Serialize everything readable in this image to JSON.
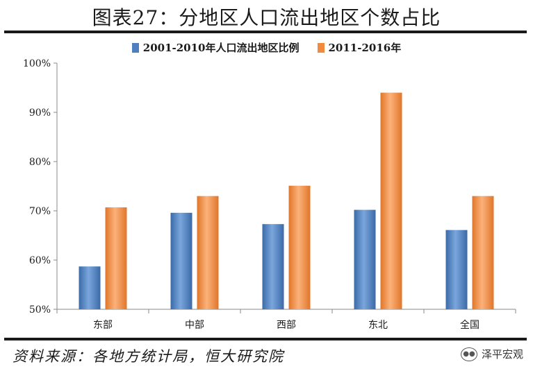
{
  "title": "图表27：分地区人口流出地区个数占比",
  "legend": [
    {
      "label": "2001-2010年人口流出地区比例",
      "color": "#4e7fbe"
    },
    {
      "label": "2011-2016年",
      "color": "#f08a3e"
    }
  ],
  "source": "资料来源：各地方统计局，恒大研究院",
  "brand": {
    "name": "泽平宏观",
    "icon": "wechat-icon"
  },
  "chart_data": {
    "type": "bar",
    "categories": [
      "东部",
      "中部",
      "西部",
      "东北",
      "全国"
    ],
    "series": [
      {
        "name": "2001-2010年人口流出地区比例",
        "values": [
          58.7,
          69.6,
          67.3,
          70.2,
          66.1
        ],
        "color": "#4e7fbe"
      },
      {
        "name": "2011-2016年",
        "values": [
          70.7,
          73.0,
          75.1,
          94.0,
          73.0
        ],
        "color": "#f08a3e"
      }
    ],
    "ylim": [
      50,
      100
    ],
    "yticks": [
      "50%",
      "60%",
      "70%",
      "80%",
      "90%",
      "100%"
    ],
    "ytick_values": [
      50,
      60,
      70,
      80,
      90,
      100
    ],
    "grid": false,
    "legend_position": "top"
  }
}
